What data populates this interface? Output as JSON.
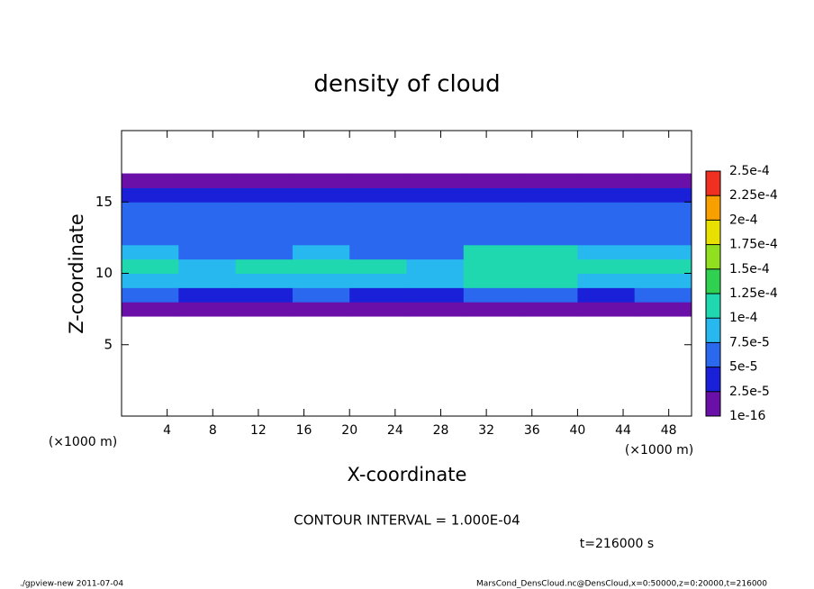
{
  "chart_data": {
    "type": "contour",
    "title": "density of cloud",
    "x_label": "X-coordinate",
    "y_label": "Z-coordinate",
    "x_unit_labels": [
      "(×1000 m)",
      "(×1000 m)"
    ],
    "xlim": [
      0,
      50
    ],
    "xticks": [
      4,
      8,
      12,
      16,
      20,
      24,
      28,
      32,
      36,
      40,
      44,
      48
    ],
    "ylim": [
      0,
      20
    ],
    "yticks": [
      5,
      10,
      15
    ],
    "x_edges": [
      0,
      5,
      10,
      15,
      20,
      25,
      30,
      35,
      40,
      45,
      50
    ],
    "z_edges": [
      7,
      8,
      9,
      10,
      11,
      12,
      13,
      14,
      15,
      16,
      17
    ],
    "values": [
      [
        2e-05,
        2e-05,
        2e-05,
        2e-05,
        2e-05,
        2e-05,
        2e-05,
        2e-05,
        2e-05,
        2e-05
      ],
      [
        5e-05,
        4e-05,
        4e-05,
        5e-05,
        4e-05,
        4e-05,
        5e-05,
        6e-05,
        4e-05,
        5e-05
      ],
      [
        9e-05,
        8e-05,
        9e-05,
        9e-05,
        9e-05,
        8e-05,
        0.0001,
        0.0001,
        9e-05,
        9e-05
      ],
      [
        0.0001,
        9e-05,
        0.0001,
        0.0001,
        0.0001,
        9e-05,
        0.00011,
        0.00011,
        0.0001,
        0.0001
      ],
      [
        8e-05,
        6e-05,
        7e-05,
        8e-05,
        7e-05,
        7e-05,
        0.0001,
        0.0001,
        8e-05,
        8e-05
      ],
      [
        6e-05,
        5e-05,
        6e-05,
        6e-05,
        6e-05,
        5e-05,
        7e-05,
        6e-05,
        6e-05,
        6e-05
      ],
      [
        6e-05,
        6e-05,
        5e-05,
        5e-05,
        6e-05,
        6e-05,
        6e-05,
        5e-05,
        6e-05,
        6e-05
      ],
      [
        6e-05,
        7e-05,
        6e-05,
        6e-05,
        6e-05,
        5e-05,
        5e-05,
        5e-05,
        6e-05,
        6e-05
      ],
      [
        3e-05,
        3e-05,
        3e-05,
        3e-05,
        3e-05,
        3e-05,
        3e-05,
        3e-05,
        3e-05,
        3e-05
      ],
      [
        1e-10,
        1e-10,
        1e-10,
        1e-10,
        1e-10,
        1e-10,
        1e-10,
        1e-10,
        1e-10,
        1e-10
      ]
    ],
    "levels": [
      {
        "value": 1e-16,
        "label": "1e-16"
      },
      {
        "value": 2.5e-05,
        "label": "2.5e-5"
      },
      {
        "value": 5e-05,
        "label": "5e-5"
      },
      {
        "value": 7.5e-05,
        "label": "7.5e-5"
      },
      {
        "value": 0.0001,
        "label": "1e-4"
      },
      {
        "value": 0.000125,
        "label": "1.25e-4"
      },
      {
        "value": 0.00015,
        "label": "1.5e-4"
      },
      {
        "value": 0.000175,
        "label": "1.75e-4"
      },
      {
        "value": 0.0002,
        "label": "2e-4"
      },
      {
        "value": 0.000225,
        "label": "2.25e-4"
      },
      {
        "value": 0.00025,
        "label": "2.5e-4"
      }
    ],
    "colors": [
      "#6a10a8",
      "#1a20d8",
      "#2a68f0",
      "#28b8f0",
      "#20d8b0",
      "#30d050",
      "#90e020",
      "#e8e000",
      "#f8a000",
      "#f03020"
    ],
    "contour_interval": "CONTOUR INTERVAL = 1.000E-04",
    "time_label": "t=216000 s",
    "footer_left": "./gpview-new   2011-07-04",
    "footer_right": "MarsCond_DensCloud.nc@DensCloud,x=0:50000,z=0:20000,t=216000"
  }
}
